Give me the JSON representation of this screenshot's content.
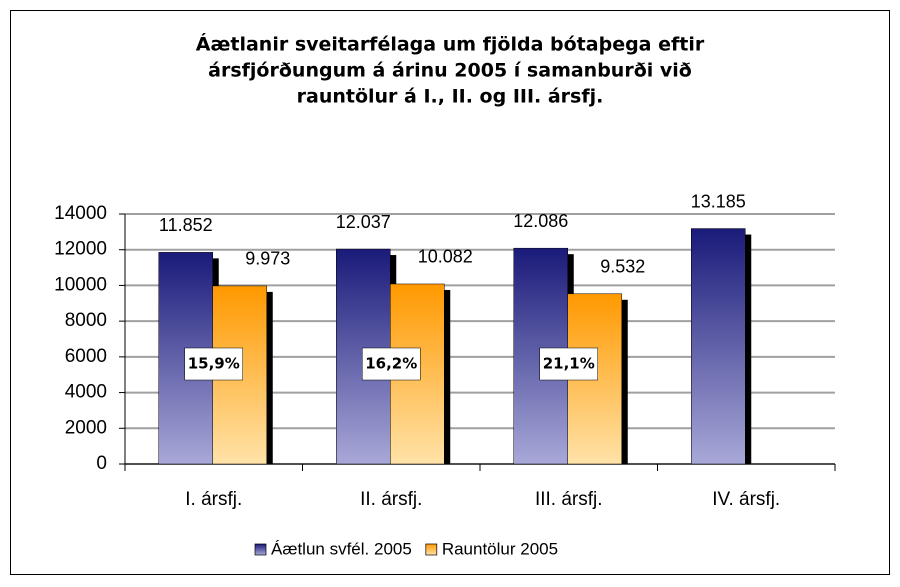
{
  "chart_data": {
    "type": "bar",
    "title": [
      "Áætlanir sveitarfélaga um fjölda bótaþega eftir",
      "ársfjórðungum á árinu 2005 í samanburði við",
      "rauntölur á I., II. og III. ársfj."
    ],
    "categories": [
      "I. ársfj.",
      "II. ársfj.",
      "III. ársfj.",
      "IV. ársfj."
    ],
    "series": [
      {
        "name": "Áætlun svfél. 2005",
        "color": "#1a1a7a",
        "values": [
          11852,
          12037,
          12086,
          13185
        ],
        "value_labels": [
          "11.852",
          "12.037",
          "12.086",
          "13.185"
        ]
      },
      {
        "name": "Rauntölur 2005",
        "color": "#ff9900",
        "values": [
          9973,
          10082,
          9532,
          null
        ],
        "value_labels": [
          "9.973",
          "10.082",
          "9.532",
          null
        ]
      }
    ],
    "annotations": [
      "15,9%",
      "16,2%",
      "21,1%"
    ],
    "ylim": [
      0,
      14000
    ],
    "yticks": [
      0,
      2000,
      4000,
      6000,
      8000,
      10000,
      12000,
      14000
    ],
    "grid": true,
    "legend": "bottom"
  }
}
